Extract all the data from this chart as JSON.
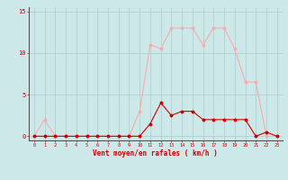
{
  "x": [
    0,
    1,
    2,
    3,
    4,
    5,
    6,
    7,
    8,
    9,
    10,
    11,
    12,
    13,
    14,
    15,
    16,
    17,
    18,
    19,
    20,
    21,
    22,
    23
  ],
  "y_rafales": [
    0,
    2,
    0,
    0,
    0,
    0,
    0,
    0,
    0,
    0,
    3,
    11,
    10.5,
    13,
    13,
    13,
    11,
    13,
    13,
    10.5,
    6.5,
    6.5,
    0,
    0
  ],
  "y_moyen": [
    0,
    0,
    0,
    0,
    0,
    0,
    0,
    0,
    0,
    0,
    0,
    1.5,
    4,
    2.5,
    3,
    3,
    2,
    2,
    2,
    2,
    2,
    0,
    0.5,
    0
  ],
  "color_rafales": "#ffaaaa",
  "color_moyen": "#cc0000",
  "bg_color": "#cce8e8",
  "grid_color": "#aacccc",
  "axis_color": "#cc0000",
  "xlabel": "Vent moyen/en rafales ( km/h )",
  "yticks": [
    0,
    5,
    10,
    15
  ],
  "ylim": [
    -0.5,
    15.5
  ],
  "xlim": [
    -0.5,
    23.5
  ]
}
